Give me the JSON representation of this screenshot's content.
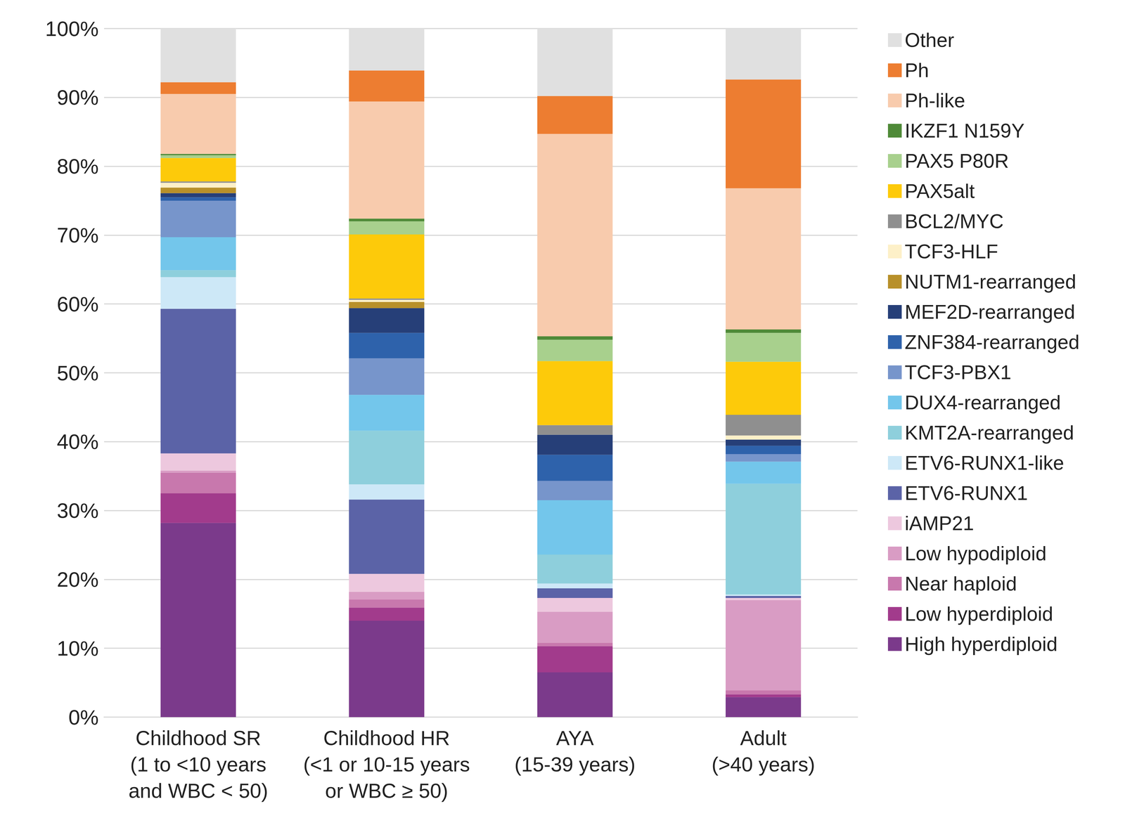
{
  "chart_data": {
    "type": "bar",
    "stacked": true,
    "grid": true,
    "legend": "right",
    "categories": [
      "Childhood SR\n(1 to <10 years\nand WBC < 50)",
      "Childhood HR\n(<1 or 10-15 years\nor WBC ≥ 50)",
      "AYA\n(15-39 years)",
      "Adult\n(>40 years)"
    ],
    "ylim": [
      0,
      100
    ],
    "yticks": [
      {
        "value": 0,
        "label": "0%"
      },
      {
        "value": 10,
        "label": "10%"
      },
      {
        "value": 20,
        "label": "20%"
      },
      {
        "value": 30,
        "label": "30%"
      },
      {
        "value": 40,
        "label": "40%"
      },
      {
        "value": 50,
        "label": "50%"
      },
      {
        "value": 60,
        "label": "60%"
      },
      {
        "value": 70,
        "label": "70%"
      },
      {
        "value": 80,
        "label": "80%"
      },
      {
        "value": 90,
        "label": "90%"
      },
      {
        "value": 100,
        "label": "100%"
      }
    ],
    "series": [
      {
        "name": "High hyperdiploid",
        "color": "#7b3a8b",
        "values": [
          28.2,
          14.0,
          6.5,
          2.9
        ]
      },
      {
        "name": "Low hyperdiploid",
        "color": "#a23b8c",
        "values": [
          4.3,
          1.9,
          3.8,
          0.4
        ]
      },
      {
        "name": "Near haploid",
        "color": "#c878ad",
        "values": [
          3.0,
          1.2,
          0.5,
          0.6
        ]
      },
      {
        "name": "Low hypodiploid",
        "color": "#d99cc4",
        "values": [
          0.3,
          1.1,
          4.5,
          13.1
        ]
      },
      {
        "name": "iAMP21",
        "color": "#edc8de",
        "values": [
          2.5,
          2.6,
          2.0,
          0.3
        ]
      },
      {
        "name": "ETV6-RUNX1",
        "color": "#5b63a7",
        "values": [
          21.0,
          10.8,
          1.4,
          0.3
        ]
      },
      {
        "name": "ETV6-RUNX1-like",
        "color": "#cde8f7",
        "values": [
          4.6,
          2.2,
          0.7,
          0.2
        ]
      },
      {
        "name": "KMT2A-rearranged",
        "color": "#8ecfdc",
        "values": [
          1.0,
          7.8,
          4.2,
          16.1
        ]
      },
      {
        "name": "DUX4-rearranged",
        "color": "#73c6eb",
        "values": [
          4.8,
          5.2,
          7.9,
          3.2
        ]
      },
      {
        "name": "TCF3-PBX1",
        "color": "#7795cb",
        "values": [
          5.3,
          5.3,
          2.8,
          1.1
        ]
      },
      {
        "name": "ZNF384-rearranged",
        "color": "#2e62ab",
        "values": [
          0.5,
          3.7,
          3.8,
          1.2
        ]
      },
      {
        "name": "MEF2D-rearranged",
        "color": "#263f78",
        "values": [
          0.6,
          3.6,
          2.9,
          0.9
        ]
      },
      {
        "name": "NUTM1-rearranged",
        "color": "#b8902a",
        "values": [
          0.8,
          0.9,
          0,
          0
        ]
      },
      {
        "name": "TCF3-HLF",
        "color": "#fdf0c8",
        "values": [
          0.7,
          0.3,
          0,
          0.6
        ]
      },
      {
        "name": "BCL2/MYC",
        "color": "#8f8f8f",
        "values": [
          0.2,
          0.2,
          1.4,
          3.0
        ]
      },
      {
        "name": "PAX5alt",
        "color": "#fdca0a",
        "values": [
          3.4,
          9.3,
          9.3,
          7.7
        ]
      },
      {
        "name": "PAX5 P80R",
        "color": "#a8d08d",
        "values": [
          0.4,
          1.9,
          3.1,
          4.2
        ]
      },
      {
        "name": "IKZF1 N159Y",
        "color": "#4f8a38",
        "values": [
          0.2,
          0.4,
          0.5,
          0.5
        ]
      },
      {
        "name": "Ph-like",
        "color": "#f8cbad",
        "values": [
          8.7,
          17.0,
          29.4,
          20.5
        ]
      },
      {
        "name": "Ph",
        "color": "#ed7d31",
        "values": [
          1.7,
          4.5,
          5.5,
          15.8
        ]
      },
      {
        "name": "Other",
        "color": "#e0e0e0",
        "values": [
          7.8,
          6.1,
          9.8,
          7.4
        ]
      }
    ]
  }
}
